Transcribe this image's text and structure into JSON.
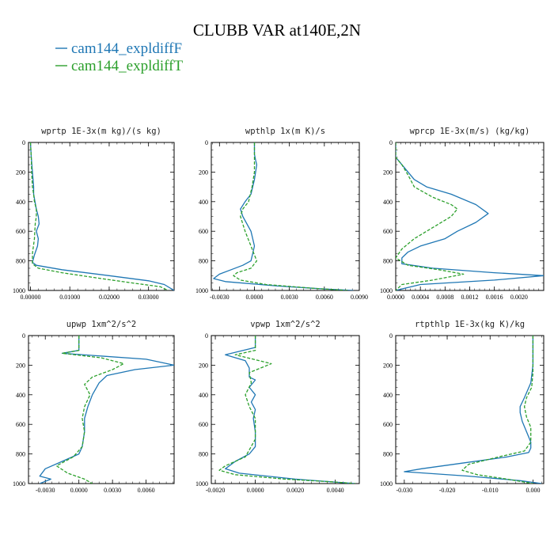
{
  "figure": {
    "title": "CLUBB VAR at140E,2N",
    "legend": [
      {
        "label": "cam144_expldiffF",
        "color": "#1f77b4",
        "dash": "solid"
      },
      {
        "label": "cam144_expldiffT",
        "color": "#2ca02c",
        "dash": "dashed"
      }
    ]
  },
  "chart_data": [
    {
      "type": "line",
      "title": "wprtp  1E-3x(m kg)/(s kg)",
      "xlim": [
        -0.0005,
        0.0365
      ],
      "ylim": [
        0,
        1000
      ],
      "y_inverted": true,
      "xticks": [
        0.0,
        0.01,
        0.02,
        0.03
      ],
      "xtick_labels": [
        "0.00000",
        "0.01000",
        "0.02000",
        "0.03000"
      ],
      "yticks": [
        0,
        200,
        400,
        600,
        800,
        1000
      ],
      "series": [
        {
          "name": "cam144_expldiffF",
          "x": [
            0.0,
            0.0002,
            0.0005,
            0.0008,
            0.0008,
            0.0015,
            0.002,
            0.0022,
            0.0015,
            0.002,
            0.0018,
            0.001,
            0.0005,
            0.0015,
            0.008,
            0.02,
            0.03,
            0.034,
            0.0365
          ],
          "y": [
            0,
            100,
            200,
            300,
            350,
            450,
            500,
            550,
            600,
            650,
            700,
            760,
            810,
            830,
            860,
            900,
            935,
            960,
            1000
          ]
        },
        {
          "name": "cam144_expldiffT",
          "x": [
            0.0,
            0.0002,
            0.0003,
            0.0005,
            0.0008,
            0.001,
            0.0015,
            0.0015,
            0.0012,
            0.001,
            0.0005,
            0.0005,
            0.002,
            0.008,
            0.018,
            0.026,
            0.033,
            0.035
          ],
          "y": [
            0,
            100,
            200,
            300,
            350,
            400,
            450,
            500,
            550,
            650,
            750,
            820,
            850,
            880,
            920,
            950,
            975,
            1000
          ]
        }
      ]
    },
    {
      "type": "line",
      "title": "wpthlp  1x(m K)/s",
      "xlim": [
        -0.0037,
        0.009
      ],
      "ylim": [
        0,
        1000
      ],
      "y_inverted": true,
      "xticks": [
        -0.003,
        0.0,
        0.003,
        0.006,
        0.009
      ],
      "xtick_labels": [
        "-0.0030",
        "0.0000",
        "0.0030",
        "0.0060",
        "0.0090"
      ],
      "yticks": [
        0,
        200,
        400,
        600,
        800,
        1000
      ],
      "series": [
        {
          "name": "cam144_expldiffF",
          "x": [
            0.0,
            0.0,
            0.0001,
            0.0002,
            0.0,
            -0.0003,
            -0.0008,
            -0.0012,
            -0.001,
            -0.0003,
            0.0,
            -0.0003,
            -0.001,
            -0.002,
            -0.003,
            -0.0035,
            -0.0025,
            0.002,
            0.006,
            0.0085
          ],
          "y": [
            0,
            80,
            120,
            150,
            250,
            350,
            400,
            450,
            500,
            600,
            700,
            800,
            830,
            860,
            890,
            920,
            940,
            970,
            990,
            1000
          ]
        },
        {
          "name": "cam144_expldiffT",
          "x": [
            0.0,
            0.0,
            0.0,
            -0.0002,
            -0.0005,
            -0.001,
            -0.0012,
            -0.0008,
            -0.0003,
            0.0002,
            -0.0003,
            -0.0015,
            -0.0018,
            -0.0012,
            0.001,
            0.005,
            0.008
          ],
          "y": [
            0,
            100,
            200,
            300,
            400,
            450,
            500,
            600,
            700,
            800,
            850,
            880,
            900,
            930,
            960,
            985,
            1000
          ]
        }
      ]
    },
    {
      "type": "line",
      "title": "wprcp  1E-3x(m/s) (kg/kg)",
      "xlim": [
        0.0,
        0.0024
      ],
      "ylim": [
        0,
        1000
      ],
      "y_inverted": true,
      "xticks": [
        0.0,
        0.0004,
        0.0008,
        0.0012,
        0.0016,
        0.002
      ],
      "xtick_labels": [
        "0.0000",
        "0.0004",
        "0.0008",
        "0.0012",
        "0.0016",
        "0.0020"
      ],
      "yticks": [
        0,
        200,
        400,
        600,
        800,
        1000
      ],
      "series": [
        {
          "name": "cam144_expldiffF",
          "x": [
            0.0,
            0.0,
            0.0001,
            0.0003,
            0.0005,
            0.0009,
            0.0013,
            0.0015,
            0.0013,
            0.001,
            0.0008,
            0.0004,
            0.0002,
            0.0001,
            0.0001,
            0.0006,
            0.0016,
            0.0024,
            0.0016,
            0.0004,
            0.0
          ],
          "y": [
            0,
            100,
            150,
            250,
            300,
            350,
            420,
            480,
            540,
            600,
            650,
            700,
            740,
            780,
            820,
            850,
            880,
            900,
            930,
            960,
            1000
          ]
        },
        {
          "name": "cam144_expldiffT",
          "x": [
            0.0,
            0.0,
            0.0001,
            0.0002,
            0.0003,
            0.0006,
            0.0009,
            0.001,
            0.0009,
            0.0007,
            0.0005,
            0.0003,
            0.0001,
            0.0,
            0.0002,
            0.0007,
            0.0011,
            0.0006,
            0.0001,
            0.0
          ],
          "y": [
            0,
            100,
            150,
            220,
            300,
            370,
            420,
            450,
            500,
            550,
            600,
            650,
            720,
            780,
            830,
            860,
            890,
            930,
            960,
            1000
          ]
        }
      ]
    },
    {
      "type": "line",
      "title": "upwp  1xm^2/s^2",
      "xlim": [
        -0.0045,
        0.0085
      ],
      "ylim": [
        0,
        1000
      ],
      "y_inverted": true,
      "xticks": [
        -0.003,
        0.0,
        0.003,
        0.006
      ],
      "xtick_labels": [
        "-0.0030",
        "0.0000",
        "0.0030",
        "0.0060"
      ],
      "yticks": [
        0,
        200,
        400,
        600,
        800,
        1000
      ],
      "series": [
        {
          "name": "cam144_expldiffF",
          "x": [
            0.0,
            0.0,
            -0.0015,
            0.006,
            0.0085,
            0.005,
            0.0025,
            0.0018,
            0.0012,
            0.0008,
            0.0005,
            0.0005,
            0.0003,
            0.0,
            -0.0015,
            -0.003,
            -0.0035,
            -0.0025,
            -0.0035
          ],
          "y": [
            0,
            100,
            120,
            160,
            200,
            230,
            270,
            320,
            400,
            480,
            560,
            650,
            750,
            800,
            850,
            900,
            950,
            970,
            1000
          ]
        },
        {
          "name": "cam144_expldiffT",
          "x": [
            0.0,
            0.0,
            -0.0015,
            0.002,
            0.004,
            0.003,
            0.0012,
            0.0005,
            0.001,
            0.0005,
            0.0003,
            0.0005,
            0.0003,
            -0.0005,
            -0.002,
            -0.001,
            0.0005,
            0.0012
          ],
          "y": [
            0,
            100,
            120,
            150,
            190,
            230,
            280,
            330,
            400,
            480,
            560,
            650,
            750,
            820,
            880,
            930,
            970,
            1000
          ]
        }
      ]
    },
    {
      "type": "line",
      "title": "vpwp  1xm^2/s^2",
      "xlim": [
        -0.0022,
        0.0052
      ],
      "ylim": [
        0,
        1000
      ],
      "y_inverted": true,
      "xticks": [
        -0.002,
        0.0,
        0.002,
        0.004
      ],
      "xtick_labels": [
        "-0.0020",
        "0.0000",
        "0.0020",
        "0.0040"
      ],
      "yticks": [
        0,
        200,
        400,
        600,
        800,
        1000
      ],
      "series": [
        {
          "name": "cam144_expldiffF",
          "x": [
            0.0,
            0.0,
            -0.0015,
            -0.0005,
            -0.0003,
            -0.0003,
            0.0,
            -0.0003,
            0.0,
            -0.0002,
            0.0,
            -0.0001,
            0.0,
            0.0,
            -0.0003,
            -0.001,
            -0.0015,
            -0.0008,
            0.002,
            0.005
          ],
          "y": [
            0,
            80,
            130,
            170,
            220,
            280,
            300,
            350,
            400,
            450,
            500,
            560,
            650,
            750,
            800,
            850,
            900,
            930,
            970,
            1000
          ]
        },
        {
          "name": "cam144_expldiffT",
          "x": [
            0.0,
            0.0,
            -0.001,
            0.0008,
            -0.0003,
            -0.0002,
            -0.0005,
            -0.0003,
            0.0,
            0.0,
            -0.0005,
            -0.0015,
            -0.0018,
            -0.001,
            0.0015,
            0.004,
            0.005
          ],
          "y": [
            0,
            100,
            130,
            190,
            250,
            320,
            400,
            480,
            560,
            700,
            820,
            880,
            910,
            940,
            970,
            990,
            1000
          ]
        }
      ]
    },
    {
      "type": "line",
      "title": "rtpthlp  1E-3x(kg K)/kg",
      "xlim": [
        -0.032,
        0.0025
      ],
      "ylim": [
        0,
        1000
      ],
      "y_inverted": true,
      "xticks": [
        -0.03,
        -0.02,
        -0.01,
        0.0
      ],
      "xtick_labels": [
        "-0.030",
        "-0.020",
        "-0.010",
        "0.000"
      ],
      "yticks": [
        0,
        200,
        400,
        600,
        800,
        1000
      ],
      "series": [
        {
          "name": "cam144_expldiffF",
          "x": [
            0.0,
            0.0,
            -0.0005,
            -0.002,
            -0.003,
            -0.003,
            -0.0025,
            -0.0015,
            -0.0005,
            -0.0005,
            -0.001,
            -0.006,
            -0.016,
            -0.026,
            -0.03,
            -0.015,
            -0.003,
            0.002
          ],
          "y": [
            0,
            200,
            320,
            420,
            480,
            520,
            580,
            650,
            720,
            760,
            790,
            820,
            860,
            900,
            920,
            950,
            980,
            1000
          ]
        },
        {
          "name": "cam144_expldiffT",
          "x": [
            0.0,
            0.0,
            -0.0003,
            -0.0015,
            -0.002,
            -0.0015,
            -0.0005,
            -0.0005,
            -0.002,
            -0.008,
            -0.015,
            -0.0165,
            -0.013,
            -0.006,
            0.0
          ],
          "y": [
            0,
            250,
            350,
            420,
            480,
            550,
            620,
            720,
            780,
            820,
            870,
            910,
            940,
            970,
            1000
          ]
        }
      ]
    }
  ]
}
